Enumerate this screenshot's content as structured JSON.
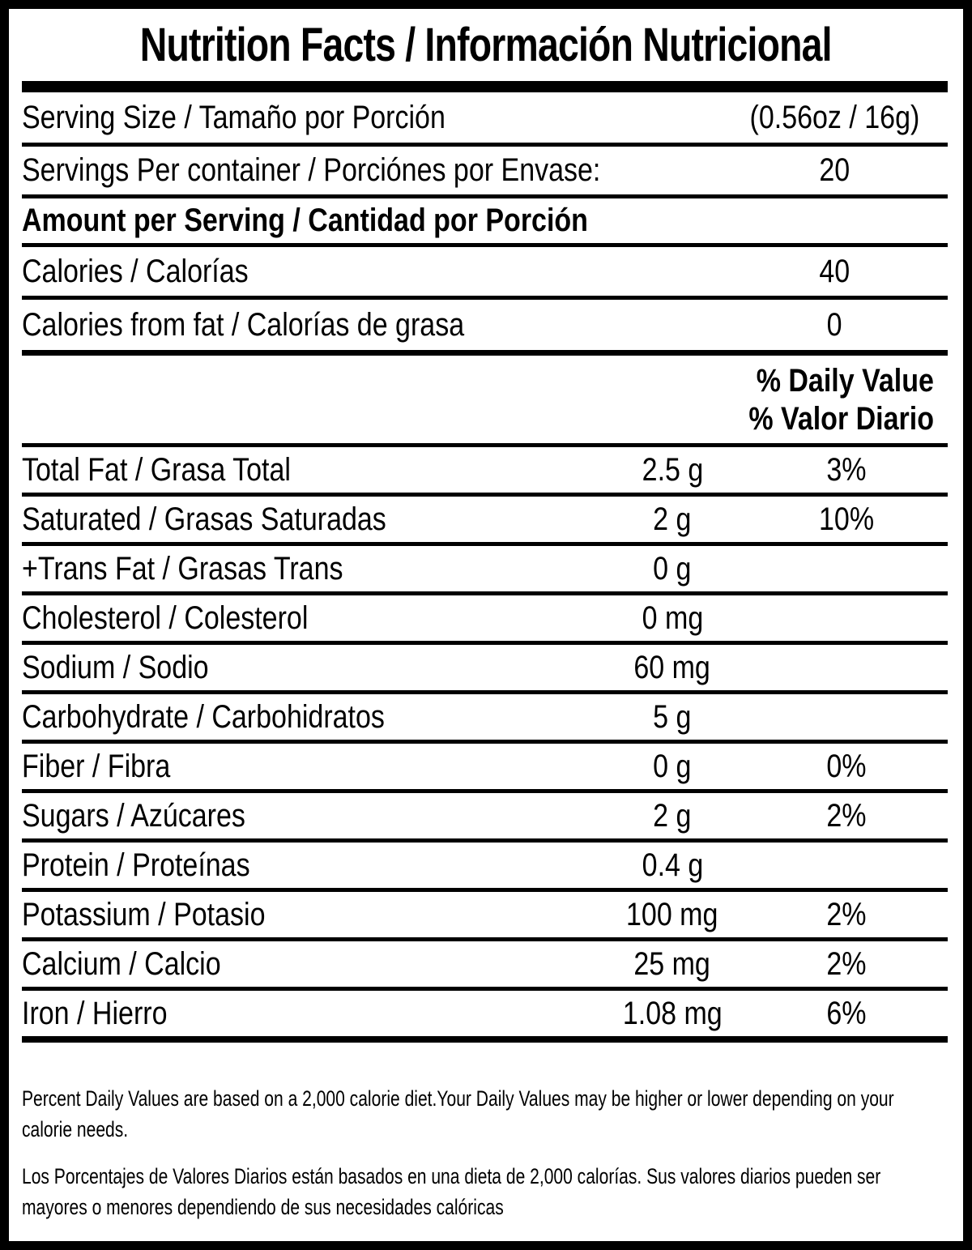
{
  "title": "Nutrition Facts / Información Nutricional",
  "serving": {
    "size_label": "Serving Size / Tamaño por Porción",
    "size_value": "(0.56oz / 16g)",
    "per_container_label": "Servings Per container / Porciónes por Envase:",
    "per_container_value": "20"
  },
  "amount_heading": "Amount per Serving / Cantidad por Porción",
  "calories": {
    "label": "Calories / Calorías",
    "value": "40"
  },
  "calories_from_fat": {
    "label": "Calories from fat / Calorías de grasa",
    "value": "0"
  },
  "daily_value_header": {
    "en": "% Daily Value",
    "es": "% Valor Diario"
  },
  "nutrients": [
    {
      "label": "Total Fat / Grasa Total",
      "amount": "2.5 g",
      "dv": "3%"
    },
    {
      "label": "Saturated / Grasas Saturadas",
      "amount": "2 g",
      "dv": "10%"
    },
    {
      "label": "+Trans Fat / Grasas Trans",
      "amount": "0 g",
      "dv": ""
    },
    {
      "label": "Cholesterol / Colesterol",
      "amount": "0 mg",
      "dv": ""
    },
    {
      "label": "Sodium / Sodio",
      "amount": "60 mg",
      "dv": ""
    },
    {
      "label": "Carbohydrate / Carbohidratos",
      "amount": "5 g",
      "dv": ""
    },
    {
      "label": "Fiber / Fibra",
      "amount": "0 g",
      "dv": "0%"
    },
    {
      "label": "Sugars / Azúcares",
      "amount": "2 g",
      "dv": "2%"
    },
    {
      "label": "Protein / Proteínas",
      "amount": "0.4 g",
      "dv": ""
    },
    {
      "label": "Potassium / Potasio",
      "amount": "100 mg",
      "dv": "2%"
    },
    {
      "label": "Calcium / Calcio",
      "amount": "25 mg",
      "dv": "2%"
    },
    {
      "label": "Iron / Hierro",
      "amount": "1.08 mg",
      "dv": "6%"
    }
  ],
  "footnotes": {
    "en": [
      "Percent Daily Values are based on a 2,000 calorie diet.Your Daily Values may be higher or lower depending on your",
      "calorie needs."
    ],
    "es": [
      "Los Porcentajes de Valores Diarios están basados en una dieta de 2,000 calorías. Sus valores diarios pueden ser",
      "mayores o menores dependiendo de sus necesidades calóricas"
    ]
  },
  "colors": {
    "text": "#000000",
    "background": "#ffffff"
  }
}
